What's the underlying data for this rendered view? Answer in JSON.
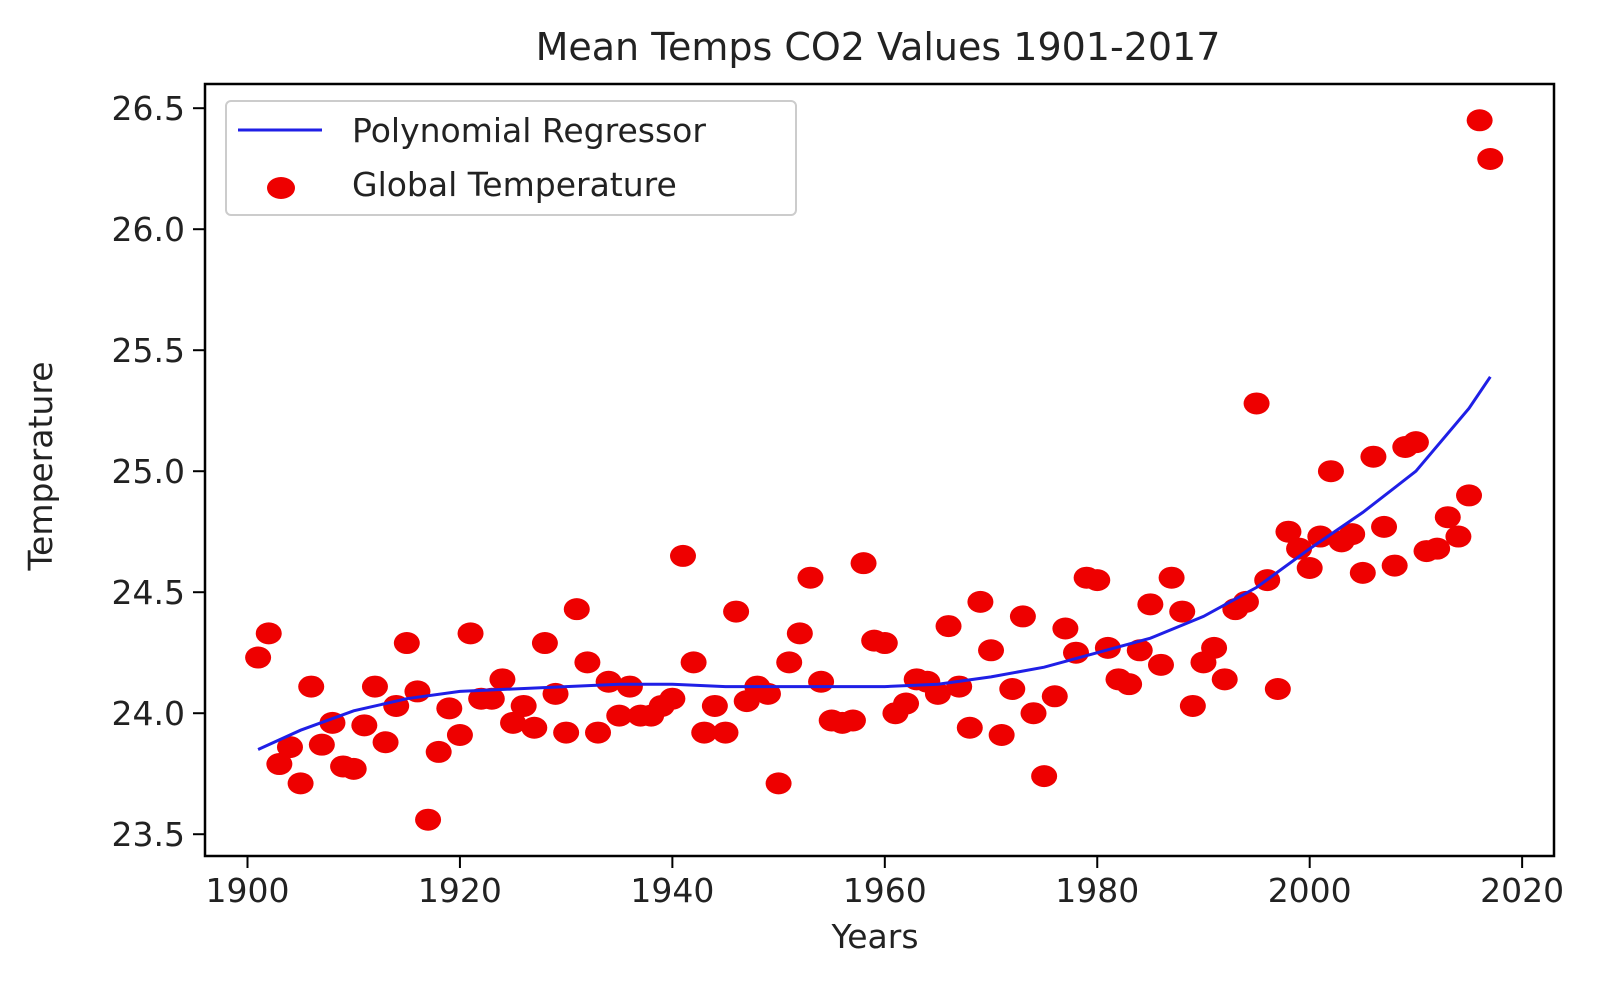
{
  "chart_data": {
    "type": "scatter",
    "title": "Mean Temps CO2 Values 1901-2017",
    "xlabel": "Years",
    "ylabel": "Temperature",
    "xlim": [
      1896,
      2023
    ],
    "ylim": [
      23.41,
      26.6
    ],
    "xticks": [
      1900,
      1920,
      1940,
      1960,
      1980,
      2000,
      2020
    ],
    "yticks": [
      23.5,
      24.0,
      24.5,
      25.0,
      25.5,
      26.0,
      26.5
    ],
    "ytick_labels": [
      "23.5",
      "24.0",
      "24.5",
      "25.0",
      "25.5",
      "26.0",
      "26.5"
    ],
    "grid": false,
    "legend_position": "upper-left",
    "colors": {
      "regression_line": "#1f1fe6",
      "points": "#ee0000",
      "axes": "#000000"
    },
    "series": [
      {
        "name": "Polynomial Regressor",
        "kind": "line",
        "x": [
          1901,
          1905,
          1910,
          1915,
          1920,
          1925,
          1930,
          1935,
          1940,
          1945,
          1950,
          1955,
          1960,
          1965,
          1970,
          1975,
          1980,
          1985,
          1990,
          1995,
          2000,
          2005,
          2010,
          2015,
          2017
        ],
        "y": [
          23.85,
          23.93,
          24.01,
          24.06,
          24.09,
          24.1,
          24.11,
          24.12,
          24.12,
          24.11,
          24.11,
          24.11,
          24.11,
          24.12,
          24.15,
          24.19,
          24.25,
          24.31,
          24.4,
          24.52,
          24.68,
          24.83,
          25.0,
          25.26,
          25.39
        ]
      },
      {
        "name": "Global Temperature",
        "kind": "scatter",
        "x": [
          1901,
          1902,
          1903,
          1904,
          1905,
          1906,
          1907,
          1908,
          1909,
          1910,
          1911,
          1912,
          1913,
          1914,
          1915,
          1916,
          1917,
          1918,
          1919,
          1920,
          1921,
          1922,
          1923,
          1924,
          1925,
          1926,
          1927,
          1928,
          1929,
          1930,
          1931,
          1932,
          1933,
          1934,
          1935,
          1936,
          1937,
          1938,
          1939,
          1940,
          1941,
          1942,
          1943,
          1944,
          1945,
          1946,
          1947,
          1948,
          1949,
          1950,
          1951,
          1952,
          1953,
          1954,
          1955,
          1956,
          1957,
          1958,
          1959,
          1960,
          1961,
          1962,
          1963,
          1964,
          1965,
          1966,
          1967,
          1968,
          1969,
          1970,
          1971,
          1972,
          1973,
          1974,
          1975,
          1976,
          1977,
          1978,
          1979,
          1980,
          1981,
          1982,
          1983,
          1984,
          1985,
          1986,
          1987,
          1988,
          1989,
          1990,
          1991,
          1992,
          1993,
          1994,
          1995,
          1996,
          1997,
          1998,
          1999,
          2000,
          2001,
          2002,
          2003,
          2004,
          2005,
          2006,
          2007,
          2008,
          2009,
          2010,
          2011,
          2012,
          2013,
          2014,
          2015,
          2016,
          2017
        ],
        "y": [
          24.23,
          24.33,
          23.79,
          23.86,
          23.71,
          24.11,
          23.87,
          23.96,
          23.78,
          23.77,
          23.95,
          24.11,
          23.88,
          24.03,
          24.29,
          24.09,
          23.56,
          23.84,
          24.02,
          23.91,
          24.33,
          24.06,
          24.06,
          24.14,
          23.96,
          24.03,
          23.94,
          24.29,
          24.08,
          23.92,
          24.43,
          24.21,
          23.92,
          24.13,
          23.99,
          24.11,
          23.99,
          23.99,
          24.03,
          24.06,
          24.65,
          24.21,
          23.92,
          24.03,
          23.92,
          24.42,
          24.05,
          24.11,
          24.08,
          23.71,
          24.21,
          24.33,
          24.56,
          24.13,
          23.97,
          23.96,
          23.97,
          24.62,
          24.3,
          24.29,
          24.0,
          24.04,
          24.14,
          24.13,
          24.08,
          24.36,
          24.11,
          23.94,
          24.46,
          24.26,
          23.91,
          24.1,
          24.4,
          24.0,
          23.74,
          24.07,
          24.35,
          24.25,
          24.56,
          24.55,
          24.27,
          24.14,
          24.12,
          24.26,
          24.45,
          24.2,
          24.56,
          24.42,
          24.03,
          24.21,
          24.27,
          24.14,
          24.43,
          24.46,
          25.28,
          24.55,
          24.1,
          24.75,
          24.68,
          24.6,
          24.73,
          25.0,
          24.71,
          24.74,
          24.58,
          25.06,
          24.77,
          24.61,
          25.1,
          25.12,
          24.67,
          24.68,
          24.81,
          24.73,
          24.9,
          26.45,
          26.29
        ]
      }
    ]
  }
}
